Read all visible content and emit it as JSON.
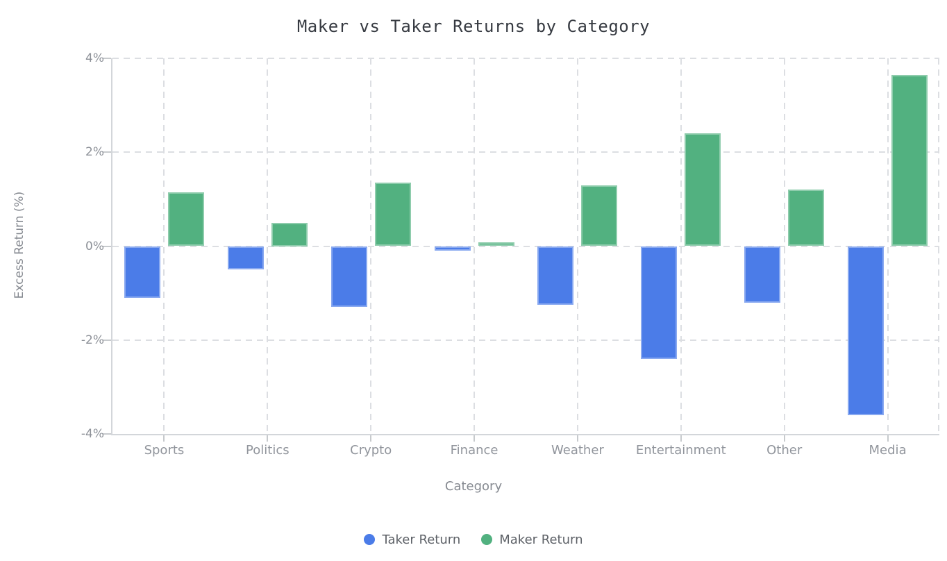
{
  "chart_data": {
    "type": "bar",
    "title": "Maker vs Taker Returns by Category",
    "xlabel": "Category",
    "ylabel": "Excess Return (%)",
    "categories": [
      "Sports",
      "Politics",
      "Crypto",
      "Finance",
      "Weather",
      "Entertainment",
      "Other",
      "Media"
    ],
    "series": [
      {
        "name": "Taker Return",
        "color": "#4b7ce8",
        "values": [
          -1.1,
          -0.5,
          -1.3,
          -0.1,
          -1.25,
          -2.4,
          -1.2,
          -3.6
        ]
      },
      {
        "name": "Maker Return",
        "color": "#52b180",
        "values": [
          1.15,
          0.5,
          1.35,
          0.08,
          1.3,
          2.4,
          1.2,
          3.65
        ]
      }
    ],
    "ylim": [
      -4,
      4
    ],
    "yticks": [
      {
        "value": 4,
        "label": "4%"
      },
      {
        "value": 2,
        "label": "2%"
      },
      {
        "value": 0,
        "label": "0%"
      },
      {
        "value": -2,
        "label": "-2%"
      },
      {
        "value": -4,
        "label": "-4%"
      }
    ],
    "grid": "dashed",
    "legend_position": "bottom"
  }
}
